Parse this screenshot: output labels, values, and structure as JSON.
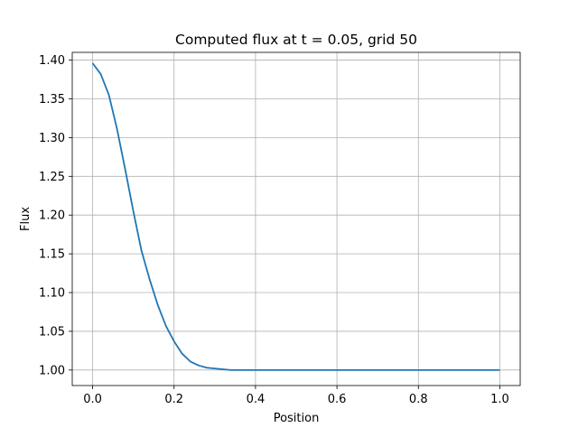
{
  "chart_data": {
    "type": "line",
    "title": "Computed flux at t = 0.05, grid 50",
    "xlabel": "Position",
    "ylabel": "Flux",
    "xlim": [
      -0.05,
      1.05
    ],
    "ylim": [
      0.98,
      1.41
    ],
    "grid": true,
    "x_ticks": [
      0.0,
      0.2,
      0.4,
      0.6,
      0.8,
      1.0
    ],
    "x_tick_labels": [
      "0.0",
      "0.2",
      "0.4",
      "0.6",
      "0.8",
      "1.0"
    ],
    "y_ticks": [
      1.0,
      1.05,
      1.1,
      1.15,
      1.2,
      1.25,
      1.3,
      1.35,
      1.4
    ],
    "y_tick_labels": [
      "1.00",
      "1.05",
      "1.10",
      "1.15",
      "1.20",
      "1.25",
      "1.30",
      "1.35",
      "1.40"
    ],
    "series": [
      {
        "color": "#1f77b4",
        "x": [
          0.0,
          0.02,
          0.04,
          0.06,
          0.08,
          0.1,
          0.12,
          0.14,
          0.16,
          0.18,
          0.2,
          0.22,
          0.24,
          0.26,
          0.28,
          0.3,
          0.32,
          0.34,
          0.36,
          0.38,
          0.4,
          0.44,
          0.5,
          0.6,
          0.7,
          0.8,
          0.9,
          1.0
        ],
        "y": [
          1.396,
          1.382,
          1.355,
          1.311,
          1.259,
          1.205,
          1.154,
          1.117,
          1.084,
          1.057,
          1.037,
          1.021,
          1.011,
          1.006,
          1.003,
          1.002,
          1.001,
          1.0,
          1.0,
          1.0,
          1.0,
          1.0,
          1.0,
          1.0,
          1.0,
          1.0,
          1.0,
          1.0
        ]
      }
    ]
  }
}
